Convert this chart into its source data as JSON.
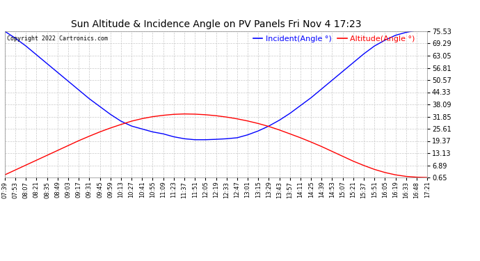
{
  "title": "Sun Altitude & Incidence Angle on PV Panels Fri Nov 4 17:23",
  "copyright": "Copyright 2022 Cartronics.com",
  "legend_incident": "Incident(Angle °)",
  "legend_altitude": "Altitude(Angle °)",
  "incident_color": "#0000ff",
  "altitude_color": "#ff0000",
  "bg_color": "#ffffff",
  "grid_color": "#c8c8c8",
  "yticks": [
    0.65,
    6.89,
    13.13,
    19.37,
    25.61,
    31.85,
    38.09,
    44.33,
    50.57,
    56.81,
    63.05,
    69.29,
    75.53
  ],
  "ymin": 0.65,
  "ymax": 75.53,
  "x_labels": [
    "07:39",
    "07:53",
    "08:07",
    "08:21",
    "08:35",
    "08:49",
    "09:03",
    "09:17",
    "09:31",
    "09:45",
    "09:59",
    "10:13",
    "10:27",
    "10:41",
    "10:55",
    "11:09",
    "11:23",
    "11:37",
    "11:51",
    "12:05",
    "12:19",
    "12:33",
    "12:47",
    "13:01",
    "13:15",
    "13:29",
    "13:43",
    "13:57",
    "14:11",
    "14:25",
    "14:39",
    "14:53",
    "15:07",
    "15:21",
    "15:37",
    "15:51",
    "16:05",
    "16:19",
    "16:33",
    "16:48",
    "17:21"
  ],
  "incident_vals": [
    75.53,
    72.0,
    68.0,
    63.5,
    59.0,
    54.5,
    50.0,
    45.5,
    41.0,
    37.0,
    33.0,
    29.5,
    27.0,
    25.5,
    24.0,
    23.0,
    21.5,
    20.5,
    20.0,
    20.0,
    20.2,
    20.5,
    21.0,
    22.5,
    24.5,
    27.0,
    30.0,
    33.5,
    37.5,
    41.5,
    46.0,
    50.5,
    55.0,
    59.5,
    64.0,
    68.0,
    71.0,
    73.5,
    75.0,
    76.0,
    78.0
  ],
  "altitude_vals": [
    2.0,
    4.5,
    7.0,
    9.5,
    12.0,
    14.5,
    17.0,
    19.5,
    21.8,
    24.0,
    26.0,
    27.8,
    29.5,
    30.8,
    31.8,
    32.5,
    33.0,
    33.2,
    33.1,
    32.8,
    32.3,
    31.6,
    30.7,
    29.6,
    28.3,
    26.8,
    25.0,
    23.0,
    21.0,
    18.8,
    16.5,
    14.0,
    11.5,
    9.0,
    6.8,
    4.8,
    3.2,
    2.0,
    1.2,
    0.8,
    0.65
  ],
  "title_fontsize": 10,
  "copyright_fontsize": 6,
  "legend_fontsize": 8,
  "tick_fontsize": 6,
  "ytick_fontsize": 7,
  "linewidth": 1.0
}
